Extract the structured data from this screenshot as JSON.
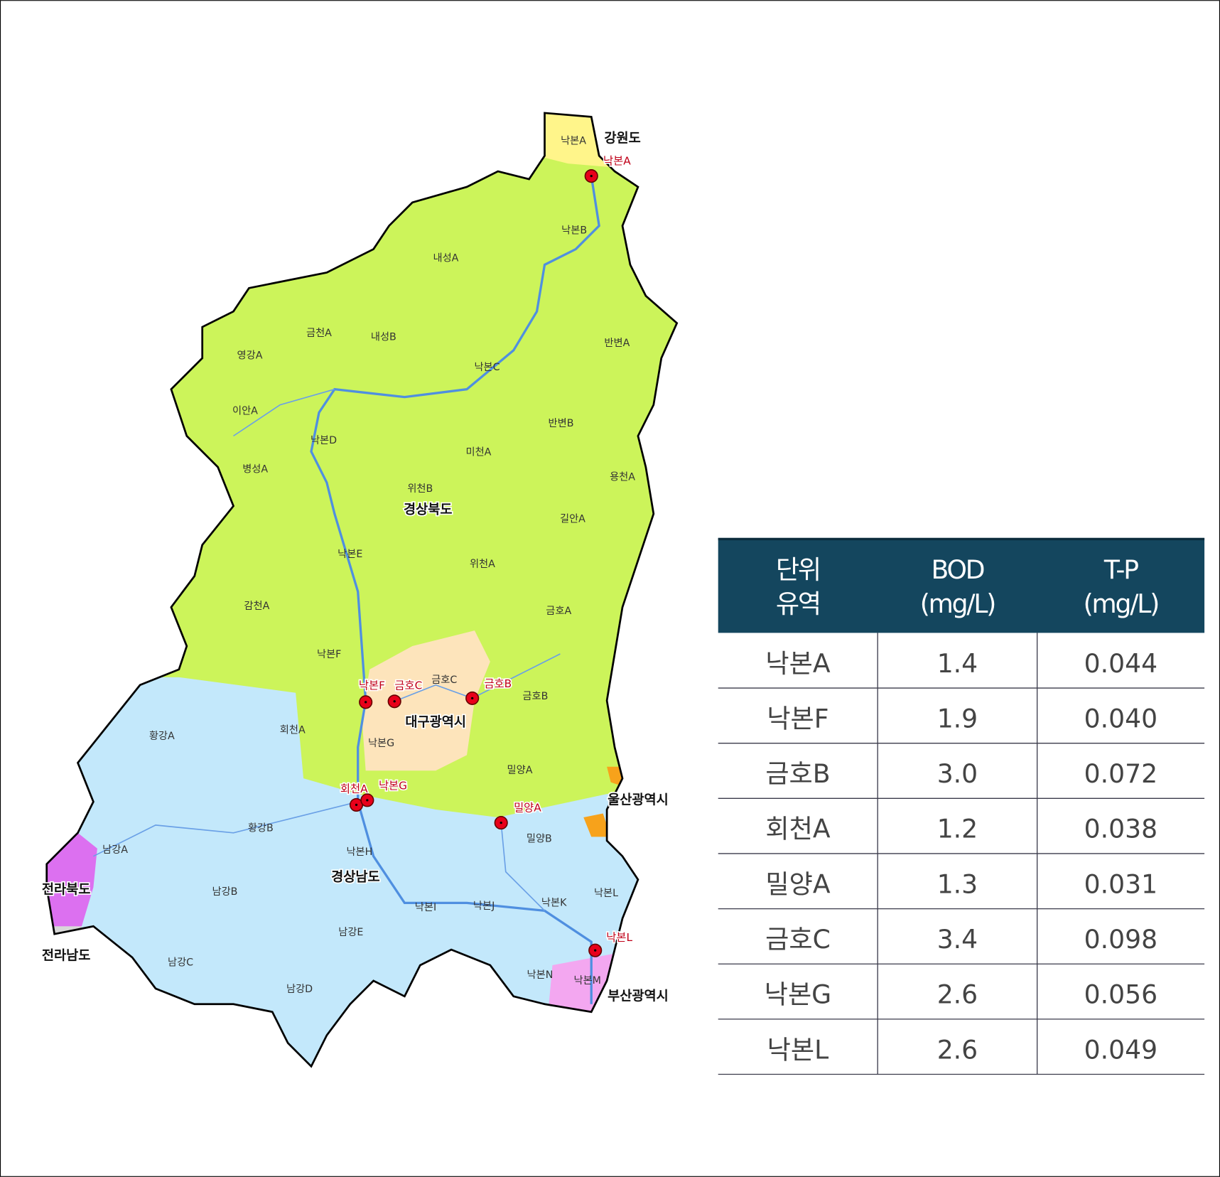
{
  "map": {
    "provinces": [
      "강원도",
      "경상북도",
      "대구광역시",
      "울산광역시",
      "경상남도",
      "전라북도",
      "전라남도",
      "부산광역시"
    ],
    "subbasins": [
      "낙본A",
      "낙본B",
      "내성A",
      "금천A",
      "내성B",
      "반변A",
      "영강A",
      "낙본C",
      "이안A",
      "반변B",
      "낙본D",
      "미천A",
      "병성A",
      "용천A",
      "위천B",
      "길안A",
      "낙본E",
      "위천A",
      "감천A",
      "금호A",
      "낙본F",
      "금호C",
      "금호B",
      "회천A",
      "황강A",
      "낙본G",
      "밀양A",
      "황강B",
      "남강A",
      "밀양B",
      "낙본H",
      "남강B",
      "낙본L",
      "낙본K",
      "낙본I",
      "낙본J",
      "남강E",
      "남강C",
      "낙본N",
      "낙본M",
      "남강D"
    ],
    "stations": [
      "낙본A",
      "낙본F",
      "금호C",
      "금호B",
      "회천A",
      "낙본G",
      "밀양A",
      "낙본L"
    ]
  },
  "table": {
    "header": [
      [
        "단위",
        "유역"
      ],
      [
        "BOD",
        "(mg/L)"
      ],
      [
        "T-P",
        "(mg/L)"
      ]
    ],
    "rows": [
      [
        "낙본A",
        "1.4",
        "0.044"
      ],
      [
        "낙본F",
        "1.9",
        "0.040"
      ],
      [
        "금호B",
        "3.0",
        "0.072"
      ],
      [
        "회천A",
        "1.2",
        "0.038"
      ],
      [
        "밀양A",
        "1.3",
        "0.031"
      ],
      [
        "금호C",
        "3.4",
        "0.098"
      ],
      [
        "낙본G",
        "2.6",
        "0.056"
      ],
      [
        "낙본L",
        "2.6",
        "0.049"
      ]
    ]
  }
}
